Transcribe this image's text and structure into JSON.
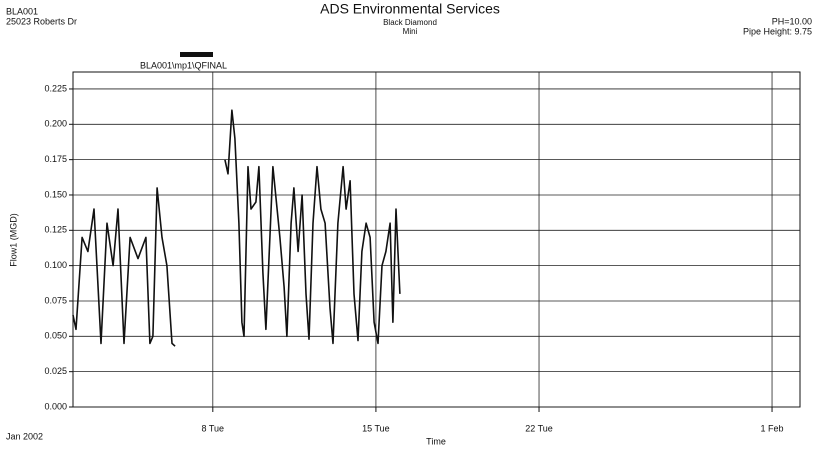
{
  "chart_data": {
    "type": "line",
    "title": "ADS Environmental Services",
    "subtitle": "Black Diamond",
    "subtitle2": "Mini",
    "site_id": "BLA001",
    "address": "25023 Roberts Dr",
    "ph": "PH=10.00",
    "pipe_height": "Pipe Height: 9.75",
    "x_label": "Time",
    "x_start_label": "Jan 2002",
    "y_label": "Flow1 (MGD)",
    "xlim": [
      2,
      33.2
    ],
    "xticks": [
      {
        "value": 8,
        "label": "8 Tue"
      },
      {
        "value": 15,
        "label": "15 Tue"
      },
      {
        "value": 22,
        "label": "22 Tue"
      },
      {
        "value": 32,
        "label": "1 Feb"
      }
    ],
    "ylim": [
      0,
      0.237
    ],
    "yticks": [
      {
        "value": 0,
        "label": "0.000"
      },
      0.025,
      {
        "value": 0.05,
        "label": "0.050"
      },
      0.075,
      {
        "value": 0.1,
        "label": "0.100"
      },
      0.125,
      {
        "value": 0.15,
        "label": "0.150"
      },
      0.175,
      {
        "value": 0.2,
        "label": "0.200"
      },
      0.225
    ],
    "grid": true,
    "legend": "top-left",
    "x": [
      2.0,
      2.13,
      2.39,
      2.64,
      2.9,
      3.2,
      3.46,
      3.72,
      3.93,
      4.19,
      4.45,
      4.79,
      5.13,
      5.3,
      5.43,
      5.61,
      5.82,
      6.03,
      6.25,
      6.38,
      7.5,
      8.52,
      8.65,
      8.82,
      8.95,
      9.12,
      9.25,
      9.34,
      9.51,
      9.64,
      9.85,
      9.98,
      10.15,
      10.28,
      10.45,
      10.58,
      10.76,
      10.88,
      11.06,
      11.18,
      11.36,
      11.48,
      11.66,
      11.83,
      12.0,
      12.13,
      12.3,
      12.47,
      12.64,
      12.82,
      13.03,
      13.16,
      13.37,
      13.59,
      13.72,
      13.89,
      14.06,
      14.23,
      14.4,
      14.58,
      14.75,
      14.92,
      15.09,
      15.26,
      15.43,
      15.61,
      15.73,
      15.86,
      16.03
    ],
    "series": [
      {
        "name": "BLA001\\mp1\\QFINAL",
        "color": "#111111",
        "values": [
          0.065,
          0.055,
          0.12,
          0.11,
          0.14,
          0.045,
          0.13,
          0.1,
          0.14,
          0.045,
          0.12,
          0.105,
          0.12,
          0.045,
          0.05,
          0.155,
          0.12,
          0.1,
          0.045,
          0.043,
          null,
          0.175,
          0.165,
          0.21,
          0.19,
          0.13,
          0.06,
          0.05,
          0.17,
          0.14,
          0.145,
          0.17,
          0.095,
          0.055,
          0.12,
          0.17,
          0.14,
          0.12,
          0.085,
          0.05,
          0.13,
          0.155,
          0.11,
          0.15,
          0.08,
          0.048,
          0.13,
          0.17,
          0.14,
          0.13,
          0.07,
          0.045,
          0.13,
          0.17,
          0.14,
          0.16,
          0.08,
          0.047,
          0.11,
          0.13,
          0.12,
          0.06,
          0.045,
          0.1,
          0.11,
          0.13,
          0.06,
          0.14,
          0.08
        ]
      }
    ]
  }
}
